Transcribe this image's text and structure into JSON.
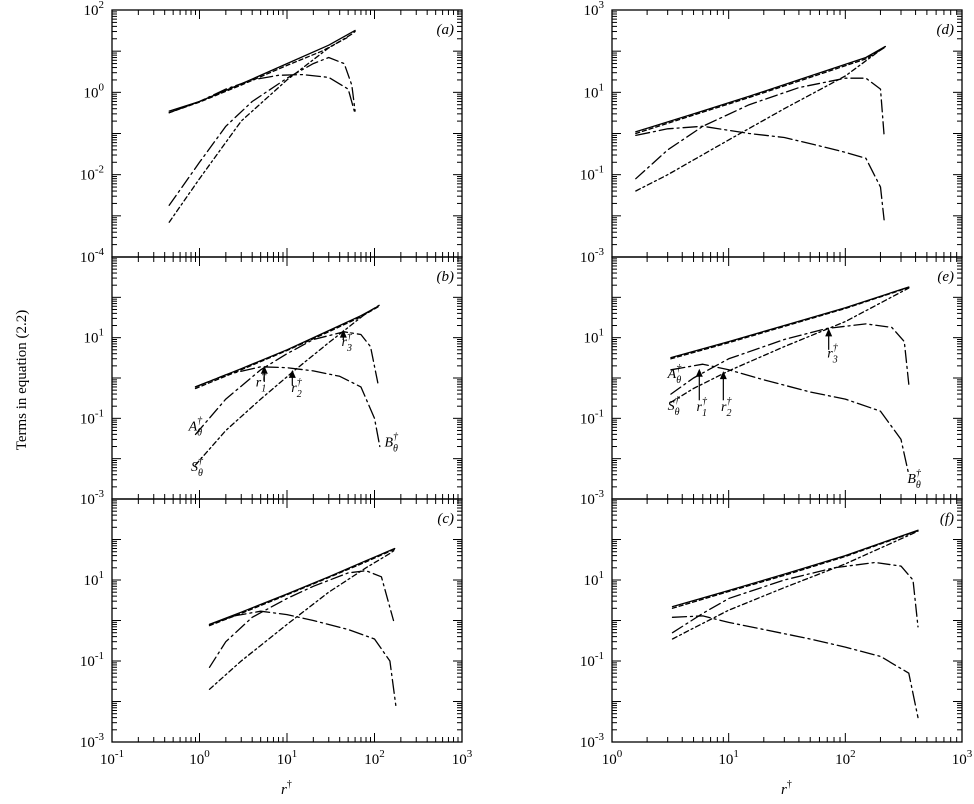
{
  "figure": {
    "ylabel": "Terms in equation (2.2)"
  },
  "chart_data": [
    {
      "id": "a",
      "type": "line",
      "label": "(a)",
      "column": "left",
      "xscale": "log",
      "yscale": "log",
      "xlim": [
        0.1,
        1000
      ],
      "ylim": [
        0.0001,
        100
      ],
      "ytick_labels": [
        [
          "10",
          "2",
          100
        ],
        [
          "10",
          "0",
          1
        ],
        [
          "10",
          "-2",
          0.01
        ],
        [
          "10",
          "-4",
          0.0001
        ]
      ],
      "series": [
        {
          "style": "solid",
          "x": [
            0.45,
            1,
            3,
            10,
            30,
            60
          ],
          "y": [
            0.35,
            0.6,
            1.6,
            5,
            14,
            32
          ]
        },
        {
          "style": "dashed",
          "x": [
            0.45,
            1,
            3,
            10,
            25,
            50
          ],
          "y": [
            0.32,
            0.58,
            1.5,
            4.5,
            10,
            22
          ]
        },
        {
          "style": "dash-dot",
          "x": [
            0.45,
            1,
            2,
            4,
            10,
            20,
            30,
            45,
            55,
            60
          ],
          "y": [
            0.0018,
            0.02,
            0.15,
            0.6,
            2.2,
            5,
            7,
            5,
            1.5,
            0.35
          ]
        },
        {
          "style": "dash-dot-dot",
          "x": [
            0.45,
            1,
            3,
            10,
            30,
            45,
            55,
            60
          ],
          "y": [
            0.0007,
            0.008,
            0.2,
            2,
            12,
            20,
            26,
            30
          ]
        },
        {
          "style": "long-dash-dot",
          "x": [
            0.45,
            1,
            2,
            4,
            8,
            15,
            30,
            50,
            60
          ],
          "y": [
            0.32,
            0.6,
            1.2,
            2,
            2.6,
            2.7,
            2.3,
            1.2,
            0.3
          ]
        }
      ],
      "annotations": []
    },
    {
      "id": "b",
      "type": "line",
      "label": "(b)",
      "column": "left",
      "xscale": "log",
      "yscale": "log",
      "xlim": [
        0.1,
        1000
      ],
      "ylim": [
        0.001,
        1000
      ],
      "ytick_labels": [
        [
          "10",
          "1",
          10
        ],
        [
          "10",
          "-1",
          0.1
        ],
        [
          "10",
          "-3",
          0.001
        ]
      ],
      "series": [
        {
          "style": "solid",
          "x": [
            0.9,
            3,
            10,
            30,
            70,
            110
          ],
          "y": [
            0.6,
            1.7,
            5,
            15,
            35,
            60
          ]
        },
        {
          "style": "dashed",
          "x": [
            0.9,
            3,
            10,
            30,
            70,
            110
          ],
          "y": [
            0.55,
            1.6,
            4.8,
            14,
            33,
            58
          ]
        },
        {
          "style": "dash-dot",
          "x": [
            0.9,
            2,
            5,
            10,
            20,
            45,
            70,
            90,
            110
          ],
          "y": [
            0.04,
            0.3,
            1.6,
            4,
            9,
            14,
            12,
            6,
            0.7
          ]
        },
        {
          "style": "dash-dot-dot",
          "x": [
            0.9,
            2,
            5,
            12,
            30,
            50,
            80,
            115
          ],
          "y": [
            0.007,
            0.05,
            0.3,
            1.5,
            7.5,
            18,
            40,
            65
          ]
        },
        {
          "style": "long-dash-dot",
          "x": [
            0.9,
            2,
            5,
            10,
            20,
            40,
            70,
            100,
            115
          ],
          "y": [
            0.6,
            1.2,
            1.9,
            1.8,
            1.5,
            1.1,
            0.6,
            0.1,
            0.02
          ]
        }
      ],
      "annotations": [
        {
          "base": "A",
          "sup": "†",
          "sub": "θ",
          "at": [
            0.75,
            0.05
          ]
        },
        {
          "base": "S",
          "sup": "†",
          "sub": "θ",
          "at": [
            0.8,
            0.005
          ]
        },
        {
          "base": "B",
          "sup": "†",
          "sub": "θ",
          "at": [
            130,
            0.02
          ]
        },
        {
          "base": "r",
          "sup": "†",
          "sub": "1",
          "at": [
            4.4,
            0.62
          ],
          "arrow_from": [
            5.5,
            0.8
          ],
          "arrow_to": [
            5.5,
            1.9
          ]
        },
        {
          "base": "r",
          "sup": "†",
          "sub": "2",
          "at": [
            11.2,
            0.45
          ],
          "arrow_from": [
            11.5,
            0.65
          ],
          "arrow_to": [
            11.5,
            1.5
          ]
        },
        {
          "base": "r",
          "sup": "†",
          "sub": "3",
          "at": [
            42,
            6.3
          ],
          "arrow_from": [
            44,
            9
          ],
          "arrow_to": [
            44,
            15
          ]
        }
      ]
    },
    {
      "id": "c",
      "type": "line",
      "label": "(c)",
      "column": "left",
      "xscale": "log",
      "yscale": "log",
      "xlim": [
        0.1,
        1000
      ],
      "ylim": [
        0.001,
        1000
      ],
      "ytick_labels": [
        [
          "10",
          "1",
          10
        ],
        [
          "10",
          "-1",
          0.1
        ],
        [
          "10",
          "-3",
          0.001
        ]
      ],
      "xtick_labels": [
        [
          "10",
          "-1",
          0.1
        ],
        [
          "10",
          "0",
          1
        ],
        [
          "10",
          "1",
          10
        ],
        [
          "10",
          "2",
          100
        ],
        [
          "10",
          "3",
          1000
        ]
      ],
      "xlabel": {
        "base": "r",
        "sup": "†"
      },
      "series": [
        {
          "style": "solid",
          "x": [
            1.3,
            3,
            10,
            30,
            80,
            170
          ],
          "y": [
            0.8,
            1.6,
            4.5,
            12,
            30,
            60
          ]
        },
        {
          "style": "dashed",
          "x": [
            1.3,
            3,
            10,
            30,
            80,
            170
          ],
          "y": [
            0.75,
            1.5,
            4.3,
            11.5,
            28,
            58
          ]
        },
        {
          "style": "dash-dot",
          "x": [
            1.3,
            2,
            4,
            10,
            20,
            50,
            80,
            120,
            165
          ],
          "y": [
            0.07,
            0.3,
            1.2,
            3.5,
            7,
            15,
            17,
            12,
            1
          ]
        },
        {
          "style": "dash-dot-dot",
          "x": [
            1.3,
            3,
            10,
            30,
            80,
            150,
            170
          ],
          "y": [
            0.02,
            0.1,
            0.8,
            5,
            20,
            45,
            55
          ]
        },
        {
          "style": "long-dash-dot",
          "x": [
            1.3,
            2.5,
            5,
            10,
            20,
            50,
            100,
            150,
            175
          ],
          "y": [
            0.8,
            1.3,
            1.7,
            1.4,
            1,
            0.6,
            0.35,
            0.1,
            0.008
          ]
        }
      ],
      "annotations": []
    },
    {
      "id": "d",
      "type": "line",
      "label": "(d)",
      "column": "right",
      "xscale": "log",
      "yscale": "log",
      "xlim": [
        1,
        1000
      ],
      "ylim": [
        0.001,
        1000
      ],
      "ytick_labels": [
        [
          "10",
          "3",
          1000
        ],
        [
          "10",
          "1",
          10
        ],
        [
          "10",
          "-1",
          0.1
        ],
        [
          "10",
          "-3",
          0.001
        ]
      ],
      "series": [
        {
          "style": "solid",
          "x": [
            1.6,
            5,
            15,
            50,
            150,
            220
          ],
          "y": [
            1.1,
            3,
            8,
            25,
            70,
            130
          ]
        },
        {
          "style": "dashed",
          "x": [
            1.6,
            5,
            15,
            50,
            150,
            220
          ],
          "y": [
            1,
            2.8,
            7.5,
            23,
            65,
            125
          ]
        },
        {
          "style": "long-dash-dot",
          "x": [
            1.6,
            3,
            6,
            15,
            30,
            60,
            100,
            150,
            200,
            215
          ],
          "y": [
            0.9,
            1.3,
            1.5,
            1,
            0.8,
            0.5,
            0.35,
            0.25,
            0.05,
            0.008
          ]
        },
        {
          "style": "dash-dot",
          "x": [
            1.6,
            3,
            6,
            15,
            40,
            100,
            150,
            200,
            215
          ],
          "y": [
            0.08,
            0.4,
            1.5,
            5,
            13,
            22,
            22,
            12,
            0.9
          ]
        },
        {
          "style": "dash-dot-dot",
          "x": [
            1.6,
            3,
            10,
            30,
            100,
            220
          ],
          "y": [
            0.04,
            0.1,
            0.7,
            4,
            25,
            130
          ]
        }
      ],
      "annotations": []
    },
    {
      "id": "e",
      "type": "line",
      "label": "(e)",
      "column": "right",
      "xscale": "log",
      "yscale": "log",
      "xlim": [
        1,
        1000
      ],
      "ylim": [
        0.001,
        1000
      ],
      "ytick_labels": [
        [
          "10",
          "1",
          10
        ],
        [
          "10",
          "-1",
          0.1
        ],
        [
          "10",
          "-3",
          0.001
        ]
      ],
      "series": [
        {
          "style": "solid",
          "x": [
            3.2,
            10,
            30,
            100,
            350
          ],
          "y": [
            3.2,
            8,
            20,
            55,
            180
          ]
        },
        {
          "style": "dashed",
          "x": [
            3.2,
            10,
            30,
            100,
            350
          ],
          "y": [
            3,
            7.5,
            19,
            53,
            175
          ]
        },
        {
          "style": "long-dash-dot",
          "x": [
            3.2,
            6,
            10,
            20,
            50,
            100,
            200,
            300,
            350
          ],
          "y": [
            1.6,
            2.2,
            1.6,
            0.9,
            0.45,
            0.3,
            0.15,
            0.03,
            0.004
          ]
        },
        {
          "style": "dash-dot",
          "x": [
            3.2,
            5,
            10,
            30,
            70,
            150,
            250,
            320,
            350
          ],
          "y": [
            0.4,
            1,
            3,
            9,
            17,
            22,
            18,
            8,
            0.7
          ]
        },
        {
          "style": "dash-dot-dot",
          "x": [
            3.2,
            5,
            10,
            30,
            100,
            350
          ],
          "y": [
            0.25,
            0.55,
            1.5,
            6,
            25,
            170
          ]
        }
      ],
      "annotations": [
        {
          "base": "A",
          "sup": "†",
          "sub": "θ",
          "at": [
            3.0,
            1.0
          ]
        },
        {
          "base": "S",
          "sup": "†",
          "sub": "θ",
          "at": [
            3.0,
            0.16
          ]
        },
        {
          "base": "B",
          "sup": "†",
          "sub": "θ",
          "at": [
            340,
            0.0025
          ]
        },
        {
          "base": "r",
          "sup": "†",
          "sub": "1",
          "at": [
            5.3,
            0.15
          ],
          "arrow_from": [
            5.6,
            0.28
          ],
          "arrow_to": [
            5.6,
            1.6
          ]
        },
        {
          "base": "r",
          "sup": "†",
          "sub": "2",
          "at": [
            8.6,
            0.15
          ],
          "arrow_from": [
            9,
            0.28
          ],
          "arrow_to": [
            9,
            1.4
          ]
        },
        {
          "base": "r",
          "sup": "†",
          "sub": "3",
          "at": [
            70,
            3.2
          ],
          "arrow_from": [
            72,
            5
          ],
          "arrow_to": [
            72,
            16
          ]
        }
      ]
    },
    {
      "id": "f",
      "type": "line",
      "label": "(f)",
      "column": "right",
      "xscale": "log",
      "yscale": "log",
      "xlim": [
        1,
        1000
      ],
      "ylim": [
        0.001,
        1000
      ],
      "ytick_labels": [
        [
          "10",
          "1",
          10
        ],
        [
          "10",
          "-1",
          0.1
        ],
        [
          "10",
          "-3",
          0.001
        ]
      ],
      "xtick_labels": [
        [
          "10",
          "0",
          1
        ],
        [
          "10",
          "1",
          10
        ],
        [
          "10",
          "2",
          100
        ],
        [
          "10",
          "3",
          1000
        ]
      ],
      "xlabel": {
        "base": "r",
        "sup": "†"
      },
      "series": [
        {
          "style": "solid",
          "x": [
            3.3,
            10,
            30,
            100,
            420
          ],
          "y": [
            2.2,
            5.5,
            14,
            40,
            170
          ]
        },
        {
          "style": "dashed",
          "x": [
            3.3,
            10,
            30,
            100,
            420
          ],
          "y": [
            2,
            5.2,
            13,
            38,
            165
          ]
        },
        {
          "style": "long-dash-dot",
          "x": [
            3.3,
            6,
            10,
            20,
            50,
            100,
            200,
            350,
            420
          ],
          "y": [
            1.2,
            1.3,
            0.9,
            0.6,
            0.35,
            0.22,
            0.13,
            0.05,
            0.004
          ]
        },
        {
          "style": "dash-dot",
          "x": [
            3.3,
            6,
            10,
            30,
            80,
            180,
            300,
            380,
            420
          ],
          "y": [
            0.5,
            1.5,
            3.5,
            10,
            20,
            27,
            22,
            10,
            0.7
          ]
        },
        {
          "style": "dash-dot-dot",
          "x": [
            3.3,
            5,
            10,
            30,
            100,
            420
          ],
          "y": [
            0.35,
            0.65,
            1.8,
            6.5,
            25,
            160
          ]
        }
      ],
      "annotations": []
    }
  ]
}
